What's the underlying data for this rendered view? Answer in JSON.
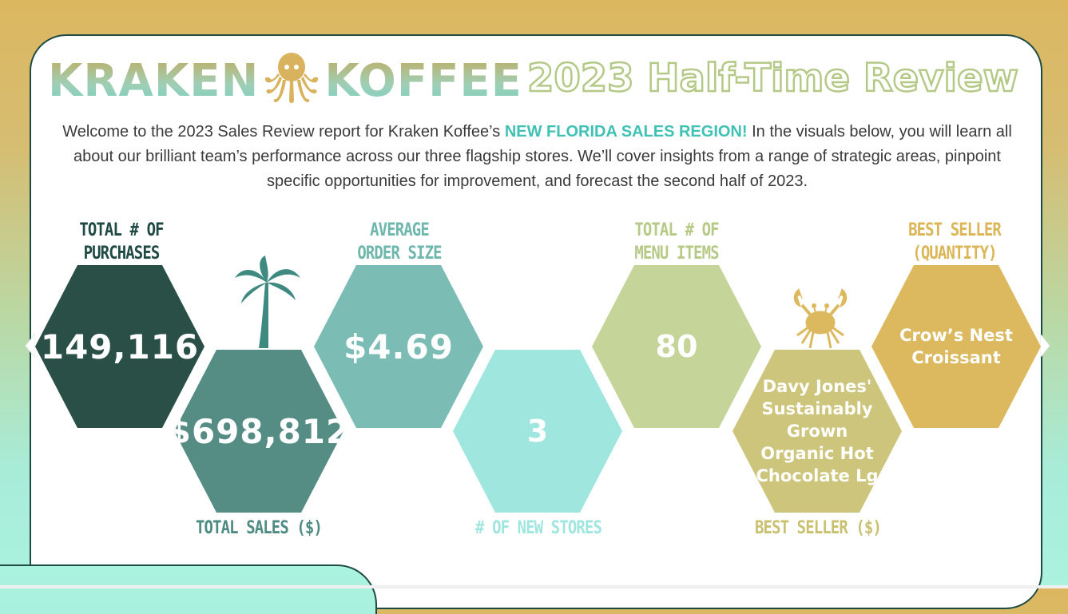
{
  "header": {
    "brand_left": "KRAKEN",
    "brand_right": "KOFFEE",
    "subtitle": "2023 Half-Time Review"
  },
  "intro": {
    "part1": "Welcome to the 2023 Sales Review report for Kraken Koffee’s ",
    "highlight": "NEW FLORIDA SALES REGION!",
    "part2": " In the visuals below, you will learn all about our brilliant team’s performance across our three flagship stores. We’ll cover insights from a range of strategic areas, pinpoint specific opportunities for improvement, and forecast the second half of 2023."
  },
  "kpis": {
    "purchases": {
      "label_line1": "TOTAL # OF",
      "label_line2": "PURCHASES",
      "value": "149,116"
    },
    "sales": {
      "label": "TOTAL SALES ($)",
      "value": "$698,812"
    },
    "avg_order": {
      "label_line1": "AVERAGE",
      "label_line2": "ORDER SIZE",
      "value": "$4.69"
    },
    "new_stores": {
      "label": "# OF NEW STORES",
      "value": "3"
    },
    "menu_items": {
      "label_line1": "TOTAL # OF",
      "label_line2": "MENU ITEMS",
      "value": "80"
    },
    "best_seller_dollars": {
      "label": "BEST SELLER ($)",
      "line1": "Davy Jones'",
      "line2": "Sustainably",
      "line3": "Grown",
      "line4": "Organic Hot",
      "line5": "Chocolate Lg"
    },
    "best_seller_qty": {
      "label_line1": "BEST SELLER",
      "label_line2": "(QUANTITY)",
      "line1": "Crow’s Nest",
      "line2": "Croissant"
    }
  },
  "colors": {
    "purchases": "#2a4f47",
    "sales": "#558d84",
    "avg_order": "#7bbdb4",
    "new_stores": "#9fe6df",
    "menu_items": "#c5d59a",
    "best_seller_dollars": "#cdc57c",
    "best_seller_qty": "#dcb95f",
    "highlight": "#3fc1b4"
  },
  "icons": [
    "octopus-icon",
    "palm-tree-icon",
    "crab-icon"
  ]
}
